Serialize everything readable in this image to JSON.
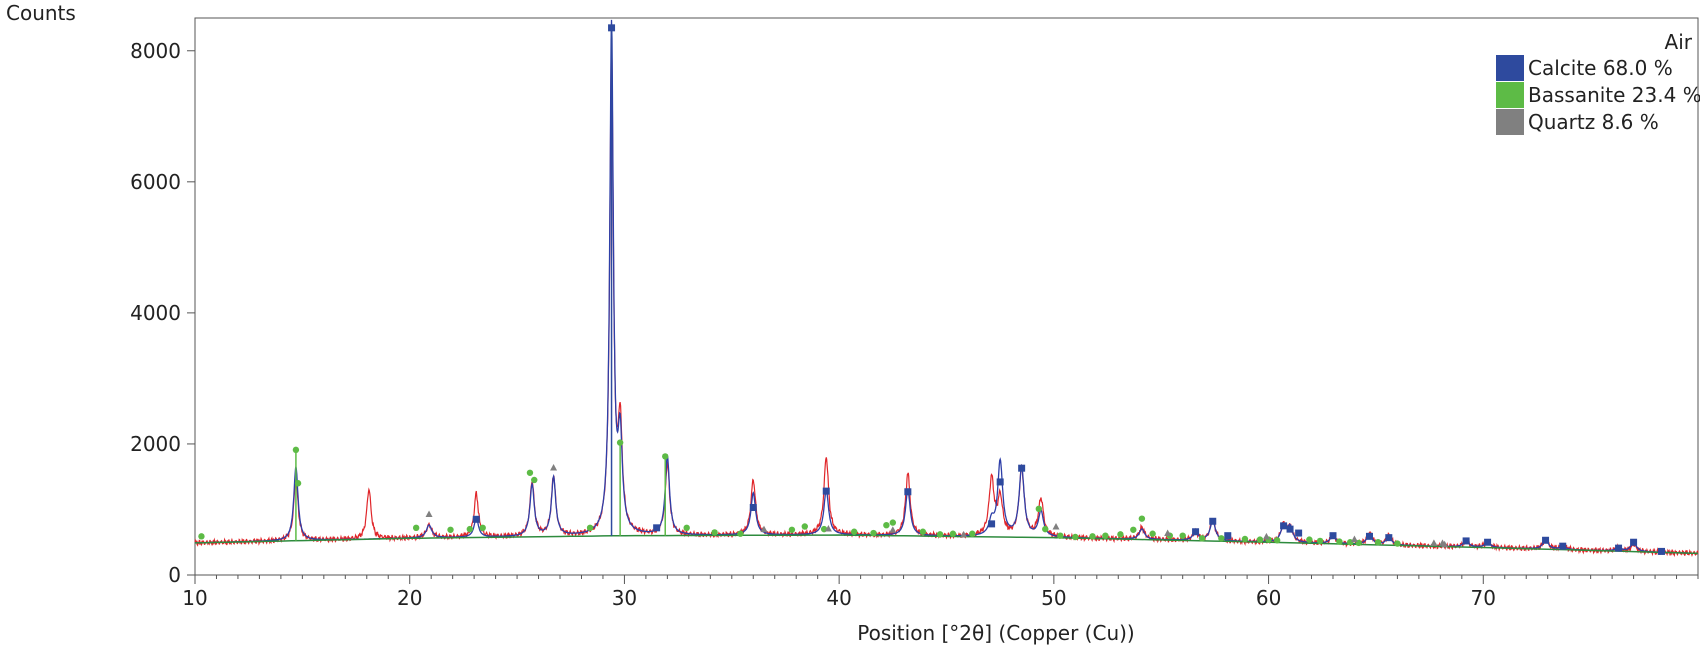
{
  "chart_data": {
    "type": "line",
    "title": "",
    "ylabel": "Counts",
    "xlabel": "Position [°2θ] (Copper (Cu))",
    "xlim": [
      10,
      80
    ],
    "ylim": [
      0,
      8500
    ],
    "x_ticks": [
      10,
      20,
      30,
      40,
      50,
      60,
      70
    ],
    "y_ticks": [
      0,
      2000,
      4000,
      6000,
      8000
    ],
    "grid": false,
    "legend_title": "Air",
    "legend_position": "top-right",
    "series": [
      {
        "name": "Calcite 68.0 %",
        "color": "#2E4A9E",
        "marker": "square"
      },
      {
        "name": "Bassanite 23.4 %",
        "color": "#5DBB46",
        "marker": "circle"
      },
      {
        "name": "Quartz 8.6 %",
        "color": "#808080",
        "marker": "triangle"
      }
    ],
    "observed_color": "#E0262A",
    "calculated_color": "#2E3FA8",
    "background_color": "#2E8B3E",
    "background": [
      [
        10,
        490
      ],
      [
        20,
        560
      ],
      [
        30,
        600
      ],
      [
        40,
        610
      ],
      [
        50,
        570
      ],
      [
        60,
        500
      ],
      [
        70,
        420
      ],
      [
        80,
        330
      ]
    ],
    "peaks": [
      {
        "x": 14.7,
        "obs": 1480,
        "calc": 1650,
        "w": 0.12
      },
      {
        "x": 18.1,
        "obs": 1310,
        "calc": 0,
        "w": 0.12
      },
      {
        "x": 20.9,
        "obs": 760,
        "calc": 760,
        "w": 0.15
      },
      {
        "x": 23.1,
        "obs": 1240,
        "calc": 870,
        "w": 0.12
      },
      {
        "x": 25.7,
        "obs": 1420,
        "calc": 1370,
        "w": 0.12
      },
      {
        "x": 26.7,
        "obs": 1500,
        "calc": 1480,
        "w": 0.12
      },
      {
        "x": 29.4,
        "obs": 8000,
        "calc": 8350,
        "w": 0.1
      },
      {
        "x": 29.8,
        "obs": 2200,
        "calc": 2000,
        "w": 0.12
      },
      {
        "x": 32.0,
        "obs": 1700,
        "calc": 1800,
        "w": 0.12
      },
      {
        "x": 36.0,
        "obs": 1450,
        "calc": 1250,
        "w": 0.13
      },
      {
        "x": 39.4,
        "obs": 1800,
        "calc": 1300,
        "w": 0.13
      },
      {
        "x": 43.2,
        "obs": 1550,
        "calc": 1300,
        "w": 0.13
      },
      {
        "x": 47.1,
        "obs": 1450,
        "calc": 800,
        "w": 0.14
      },
      {
        "x": 47.5,
        "obs": 1150,
        "calc": 1720,
        "w": 0.14
      },
      {
        "x": 48.5,
        "obs": 1620,
        "calc": 1630,
        "w": 0.14
      },
      {
        "x": 49.4,
        "obs": 1150,
        "calc": 960,
        "w": 0.14
      },
      {
        "x": 54.1,
        "obs": 720,
        "calc": 700,
        "w": 0.15
      },
      {
        "x": 56.6,
        "obs": 650,
        "calc": 650,
        "w": 0.15
      },
      {
        "x": 57.4,
        "obs": 830,
        "calc": 820,
        "w": 0.15
      },
      {
        "x": 60.7,
        "obs": 760,
        "calc": 740,
        "w": 0.15
      },
      {
        "x": 61.0,
        "obs": 700,
        "calc": 720,
        "w": 0.15
      },
      {
        "x": 63.0,
        "obs": 600,
        "calc": 600,
        "w": 0.15
      },
      {
        "x": 64.7,
        "obs": 640,
        "calc": 620,
        "w": 0.15
      },
      {
        "x": 65.6,
        "obs": 600,
        "calc": 580,
        "w": 0.15
      },
      {
        "x": 69.2,
        "obs": 520,
        "calc": 520,
        "w": 0.15
      },
      {
        "x": 70.2,
        "obs": 500,
        "calc": 500,
        "w": 0.15
      },
      {
        "x": 72.9,
        "obs": 540,
        "calc": 540,
        "w": 0.15
      },
      {
        "x": 73.7,
        "obs": 450,
        "calc": 440,
        "w": 0.15
      },
      {
        "x": 76.3,
        "obs": 420,
        "calc": 420,
        "w": 0.15
      },
      {
        "x": 77.0,
        "obs": 460,
        "calc": 500,
        "w": 0.15
      }
    ],
    "calcite_markers": [
      [
        23.1,
        850
      ],
      [
        29.4,
        8350
      ],
      [
        31.5,
        720
      ],
      [
        36.0,
        1030
      ],
      [
        39.4,
        1280
      ],
      [
        43.2,
        1270
      ],
      [
        47.1,
        780
      ],
      [
        47.5,
        1420
      ],
      [
        48.5,
        1630
      ],
      [
        56.6,
        660
      ],
      [
        57.4,
        820
      ],
      [
        58.1,
        600
      ],
      [
        60.7,
        750
      ],
      [
        61.0,
        700
      ],
      [
        61.4,
        640
      ],
      [
        63.0,
        600
      ],
      [
        64.7,
        590
      ],
      [
        65.6,
        570
      ],
      [
        69.2,
        520
      ],
      [
        70.2,
        500
      ],
      [
        72.9,
        530
      ],
      [
        73.7,
        440
      ],
      [
        76.3,
        410
      ],
      [
        77.0,
        500
      ],
      [
        78.3,
        360
      ]
    ],
    "bassanite_markers": [
      [
        10.3,
        590
      ],
      [
        14.7,
        1910
      ],
      [
        14.8,
        1400
      ],
      [
        20.3,
        720
      ],
      [
        21.9,
        690
      ],
      [
        22.8,
        700
      ],
      [
        23.4,
        720
      ],
      [
        25.6,
        1560
      ],
      [
        25.8,
        1450
      ],
      [
        28.4,
        720
      ],
      [
        29.8,
        2020
      ],
      [
        31.9,
        1810
      ],
      [
        32.9,
        720
      ],
      [
        34.2,
        650
      ],
      [
        35.4,
        630
      ],
      [
        37.8,
        690
      ],
      [
        38.4,
        740
      ],
      [
        39.3,
        700
      ],
      [
        40.7,
        660
      ],
      [
        41.6,
        640
      ],
      [
        42.2,
        760
      ],
      [
        42.5,
        800
      ],
      [
        43.9,
        660
      ],
      [
        44.7,
        620
      ],
      [
        45.3,
        630
      ],
      [
        46.2,
        630
      ],
      [
        49.3,
        1010
      ],
      [
        49.6,
        700
      ],
      [
        50.3,
        600
      ],
      [
        51.0,
        580
      ],
      [
        51.8,
        590
      ],
      [
        52.4,
        600
      ],
      [
        53.1,
        620
      ],
      [
        53.7,
        690
      ],
      [
        54.1,
        860
      ],
      [
        54.6,
        630
      ],
      [
        55.4,
        600
      ],
      [
        56.0,
        600
      ],
      [
        56.9,
        560
      ],
      [
        57.8,
        560
      ],
      [
        58.9,
        550
      ],
      [
        59.6,
        540
      ],
      [
        60.0,
        540
      ],
      [
        60.4,
        530
      ],
      [
        61.9,
        540
      ],
      [
        62.4,
        520
      ],
      [
        63.3,
        510
      ],
      [
        63.8,
        500
      ],
      [
        64.2,
        490
      ],
      [
        65.1,
        500
      ],
      [
        66.0,
        480
      ]
    ],
    "quartz_markers": [
      [
        20.9,
        930
      ],
      [
        26.7,
        1640
      ],
      [
        36.5,
        700
      ],
      [
        39.5,
        710
      ],
      [
        42.5,
        690
      ],
      [
        45.8,
        620
      ],
      [
        50.1,
        740
      ],
      [
        55.3,
        640
      ],
      [
        59.9,
        590
      ],
      [
        64.0,
        550
      ],
      [
        67.7,
        490
      ],
      [
        68.1,
        490
      ],
      [
        68.2,
        470
      ]
    ]
  }
}
